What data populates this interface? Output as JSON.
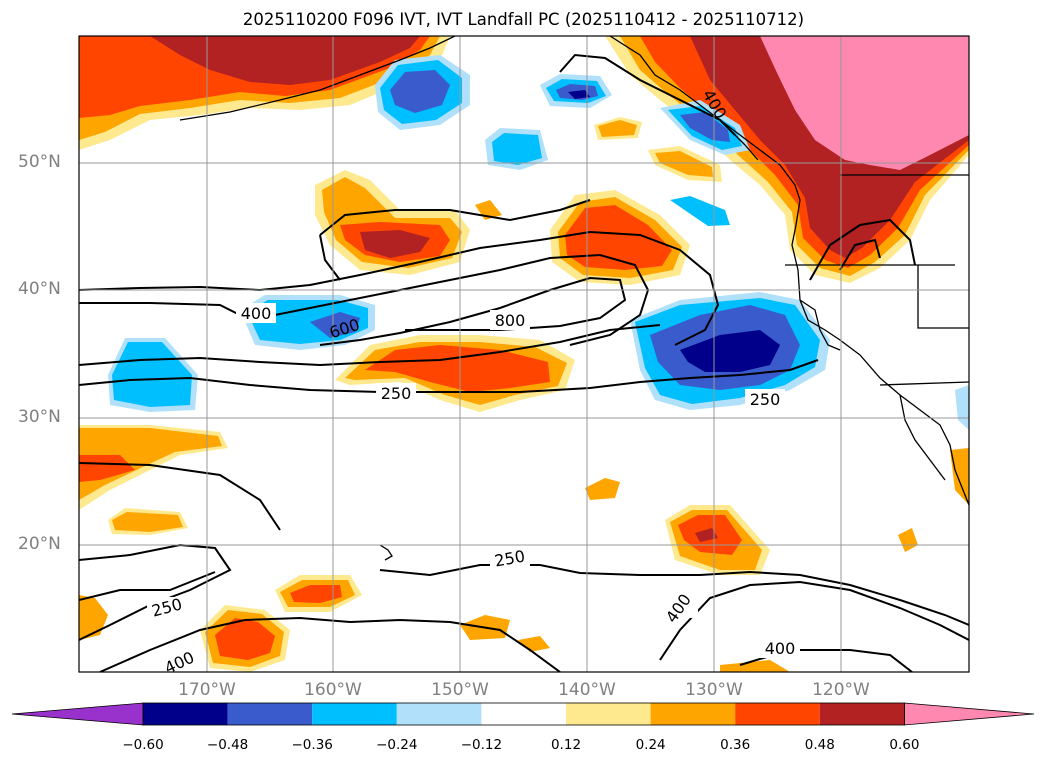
{
  "title": "2025110200 F096 IVT, IVT Landfall PC (2025110412 - 2025110712)",
  "lon_labels": [
    "170°W",
    "160°W",
    "150°W",
    "140°W",
    "130°W",
    "120°W"
  ],
  "lat_labels": [
    "50°N",
    "40°N",
    "30°N",
    "20°N"
  ],
  "contour_labels": {
    "c400a": "400",
    "c600": "600",
    "c800": "800",
    "c250a": "250",
    "c250b": "250",
    "c250c": "250",
    "c250d": "250",
    "c400b": "400",
    "c400c": "400",
    "c400d": "400",
    "c400e": "400"
  },
  "colorbar": {
    "ticks": [
      "−0.60",
      "−0.48",
      "−0.36",
      "−0.24",
      "−0.12",
      "0.12",
      "0.24",
      "0.36",
      "0.48",
      "0.60"
    ],
    "colors": [
      "#9932cc",
      "#00008b",
      "#3a5bcc",
      "#00bfff",
      "#b0e0fa",
      "#ffffff",
      "#ffe98f",
      "#ffa500",
      "#ff4500",
      "#b22222",
      "#ff88b0"
    ]
  },
  "chart_data": {
    "type": "heatmap",
    "title": "2025110200 F096 IVT, IVT Landfall PC (2025110412 - 2025110712)",
    "x_ticks": [
      "170°W",
      "160°W",
      "150°W",
      "140°W",
      "130°W",
      "120°W"
    ],
    "y_ticks": [
      "50°N",
      "40°N",
      "30°N",
      "20°N"
    ],
    "xlim": [
      -180,
      -110
    ],
    "ylim": [
      10,
      60
    ],
    "grid": true,
    "colorbar_levels": [
      -0.6,
      -0.48,
      -0.36,
      -0.24,
      -0.12,
      0.12,
      0.24,
      0.36,
      0.48,
      0.6
    ],
    "contour_levels": [
      250,
      400,
      600,
      800
    ]
  }
}
